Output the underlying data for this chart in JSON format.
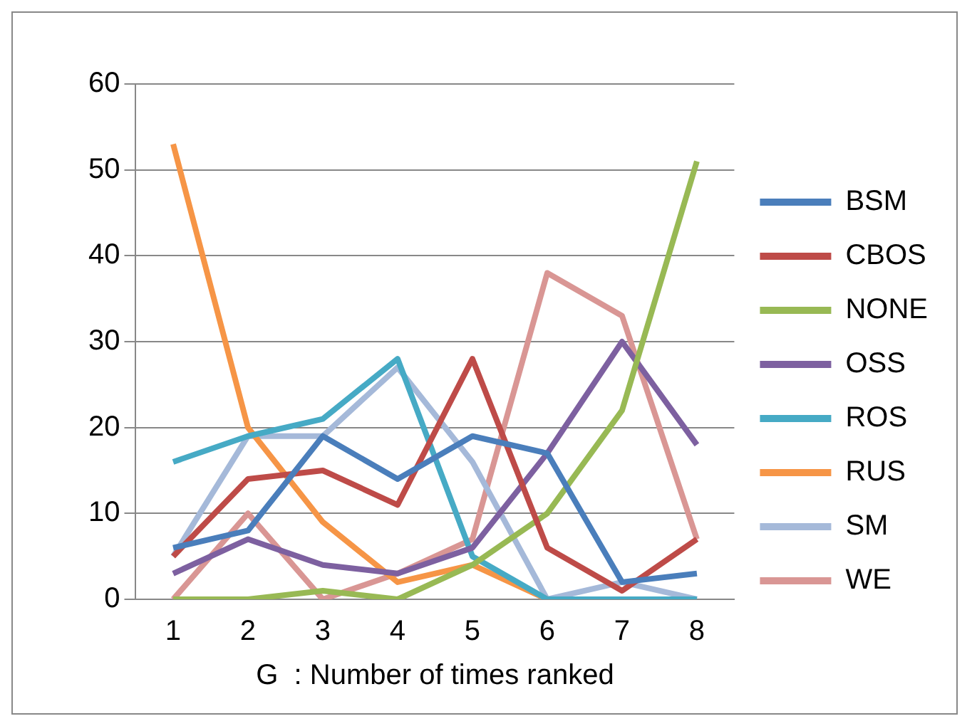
{
  "chart_data": {
    "type": "line",
    "xlabel": "G  : Number of times ranked",
    "categories": [
      "1",
      "2",
      "3",
      "4",
      "5",
      "6",
      "7",
      "8"
    ],
    "series": [
      {
        "name": "BSM",
        "color": "#4a7ebb",
        "values": [
          6,
          8,
          19,
          14,
          19,
          17,
          2,
          3
        ]
      },
      {
        "name": "CBOS",
        "color": "#be4b48",
        "values": [
          5,
          14,
          15,
          11,
          28,
          6,
          1,
          7
        ]
      },
      {
        "name": "NONE",
        "color": "#98b954",
        "values": [
          0,
          0,
          1,
          0,
          4,
          10,
          22,
          51
        ]
      },
      {
        "name": "OSS",
        "color": "#7d60a0",
        "values": [
          3,
          7,
          4,
          3,
          6,
          17,
          30,
          18
        ]
      },
      {
        "name": "ROS",
        "color": "#46aac5",
        "values": [
          16,
          19,
          21,
          28,
          5,
          0,
          0,
          0
        ]
      },
      {
        "name": "RUS",
        "color": "#f69546",
        "values": [
          53,
          20,
          9,
          2,
          4,
          0,
          0,
          0
        ]
      },
      {
        "name": "SM",
        "color": "#a5b9d9",
        "values": [
          5,
          19,
          19,
          27,
          16,
          0,
          2,
          0
        ]
      },
      {
        "name": "WE",
        "color": "#d99694",
        "values": [
          0,
          10,
          0,
          3,
          7,
          38,
          33,
          7
        ]
      }
    ],
    "ylim": [
      0,
      60
    ],
    "yticks": [
      0,
      10,
      20,
      30,
      40,
      50,
      60
    ],
    "grid": "y",
    "legend": "right",
    "marker": "none"
  }
}
